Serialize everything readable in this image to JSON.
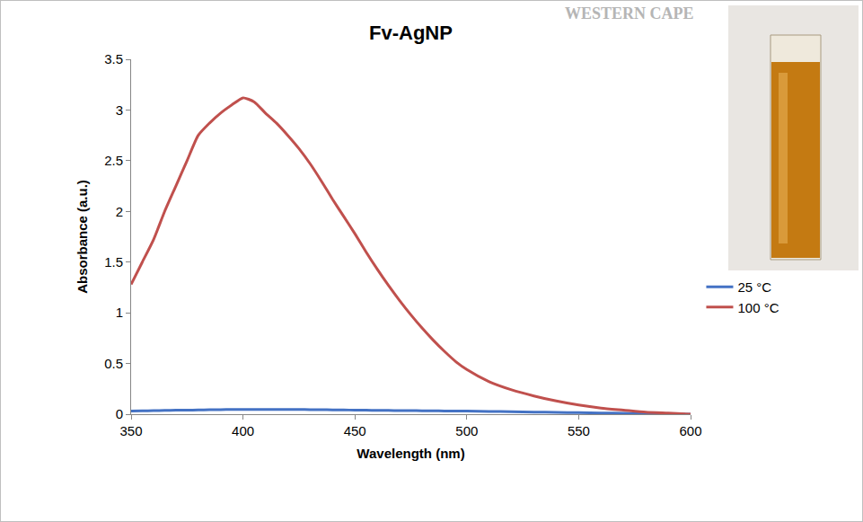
{
  "chart_data": {
    "type": "line",
    "title": "Fv-AgNP",
    "x_label": "Wavelength (nm)",
    "y_label": "Absorbance (a.u.)",
    "annotations": [
      "WESTERN CAPE"
    ],
    "x": [
      350,
      355,
      360,
      365,
      370,
      375,
      380,
      385,
      390,
      395,
      400,
      405,
      410,
      415,
      420,
      425,
      430,
      435,
      440,
      445,
      450,
      455,
      460,
      465,
      470,
      475,
      480,
      485,
      490,
      495,
      500,
      510,
      520,
      530,
      540,
      550,
      560,
      570,
      580,
      590,
      600
    ],
    "series": [
      {
        "name": "25 °C",
        "color": "#4472c4",
        "values": [
          0.03,
          0.033,
          0.035,
          0.037,
          0.039,
          0.04,
          0.042,
          0.044,
          0.045,
          0.046,
          0.047,
          0.047,
          0.047,
          0.047,
          0.047,
          0.046,
          0.045,
          0.044,
          0.043,
          0.042,
          0.04,
          0.039,
          0.038,
          0.037,
          0.036,
          0.035,
          0.034,
          0.033,
          0.032,
          0.031,
          0.03,
          0.027,
          0.024,
          0.021,
          0.018,
          0.015,
          0.012,
          0.009,
          0.006,
          0.003,
          0.0
        ]
      },
      {
        "name": "100 °C",
        "color": "#c0504d",
        "values": [
          1.28,
          1.5,
          1.72,
          2.0,
          2.25,
          2.5,
          2.75,
          2.87,
          2.97,
          3.05,
          3.12,
          3.08,
          2.97,
          2.87,
          2.75,
          2.62,
          2.47,
          2.3,
          2.12,
          1.95,
          1.78,
          1.6,
          1.43,
          1.27,
          1.12,
          0.98,
          0.85,
          0.73,
          0.62,
          0.52,
          0.44,
          0.32,
          0.24,
          0.18,
          0.13,
          0.09,
          0.06,
          0.04,
          0.02,
          0.01,
          0.0
        ]
      }
    ],
    "xlim": [
      350,
      600
    ],
    "xticks": [
      350,
      400,
      450,
      500,
      550,
      600
    ],
    "ylim": [
      0,
      3.5
    ],
    "yticks": [
      0,
      0.5,
      1,
      1.5,
      2,
      2.5,
      3,
      3.5
    ],
    "grid": false,
    "legend": "right"
  }
}
